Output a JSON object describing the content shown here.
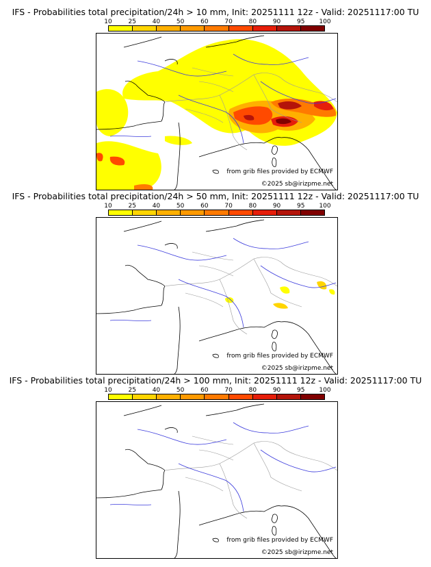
{
  "colorbar": {
    "ticks": [
      "10",
      "25",
      "40",
      "50",
      "60",
      "70",
      "80",
      "90",
      "95",
      "100"
    ],
    "colors": [
      "#ffff00",
      "#ffd500",
      "#ffb000",
      "#ff9a00",
      "#ff7a00",
      "#ff4a00",
      "#e61e0a",
      "#b4140a",
      "#800000"
    ]
  },
  "panels": [
    {
      "title": "IFS - Probabilities total precipitation/24h > 10 mm, Init: 20251111 12z - Valid: 20251117:00 TU",
      "threshold_mm": 10,
      "source_text": "from grib files provided by ECMWF",
      "copyright": "©2025 sb@irizpme.net"
    },
    {
      "title": "IFS - Probabilities total precipitation/24h > 50 mm, Init: 20251111 12z - Valid: 20251117:00 TU",
      "threshold_mm": 50,
      "source_text": "from grib files provided by ECMWF",
      "copyright": "©2025 sb@irizpme.net"
    },
    {
      "title": "IFS - Probabilities total precipitation/24h > 100 mm, Init: 20251111 12z - Valid: 20251117:00 TU",
      "threshold_mm": 100,
      "source_text": "from grib files provided by ECMWF",
      "copyright": "©2025 sb@irizpme.net"
    }
  ]
}
